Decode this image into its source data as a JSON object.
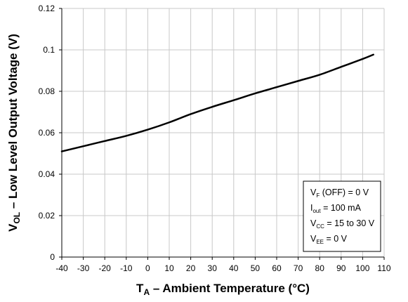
{
  "chart_data": {
    "type": "line",
    "title": "",
    "xlabel": {
      "main": "T",
      "sub": "A",
      "rest": " – Ambient Temperature (°C)"
    },
    "ylabel": {
      "main": "V",
      "sub": "OL",
      "rest": " – Low Level Output Voltage  (V)"
    },
    "xlim": [
      -40,
      110
    ],
    "ylim": [
      0,
      0.12
    ],
    "xticks": [
      -40,
      -30,
      -20,
      -10,
      0,
      10,
      20,
      30,
      40,
      50,
      60,
      70,
      80,
      90,
      100,
      110
    ],
    "yticks": [
      0,
      0.02,
      0.04,
      0.06,
      0.08,
      0.1,
      0.12
    ],
    "ytick_labels": [
      "0",
      "0.02",
      "0.04",
      "0.06",
      "0.08",
      "0.1",
      "0.12"
    ],
    "grid": true,
    "series": [
      {
        "x": [
          -40,
          -30,
          -20,
          -10,
          0,
          10,
          20,
          30,
          40,
          50,
          60,
          70,
          80,
          90,
          100,
          105
        ],
        "y": [
          0.051,
          0.0535,
          0.056,
          0.0585,
          0.0615,
          0.065,
          0.069,
          0.0725,
          0.0757,
          0.079,
          0.082,
          0.085,
          0.088,
          0.0918,
          0.0956,
          0.0977
        ],
        "color": "#000000"
      }
    ],
    "legend": {
      "placement": "bottom-right",
      "lines": [
        {
          "main": "V",
          "sub": "F",
          "rest": " (OFF) = 0 V"
        },
        {
          "main": "I",
          "sub": "out",
          "rest": " = 100 mA"
        },
        {
          "main": "V",
          "sub": "CC",
          "rest": " = 15 to 30 V"
        },
        {
          "main": "V",
          "sub": "EE",
          "rest": " = 0 V"
        }
      ]
    },
    "colors": {
      "line": "#000000",
      "grid": "#c8c8c8",
      "background": "#ffffff"
    }
  }
}
